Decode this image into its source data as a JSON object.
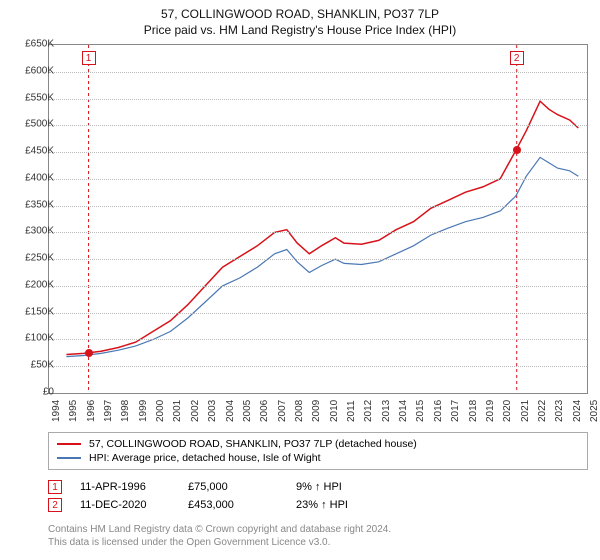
{
  "title_line1": "57, COLLINGWOOD ROAD, SHANKLIN, PO37 7LP",
  "title_line2": "Price paid vs. HM Land Registry's House Price Index (HPI)",
  "chart": {
    "type": "line",
    "background_color": "#ffffff",
    "grid_color": "#bbbbbb",
    "axis_color": "#888888",
    "label_fontsize": 10,
    "xlim": [
      1994,
      2025
    ],
    "ylim": [
      0,
      650000
    ],
    "ytick_step": 50000,
    "ytick_labels": [
      "£0",
      "£50K",
      "£100K",
      "£150K",
      "£200K",
      "£250K",
      "£300K",
      "£350K",
      "£400K",
      "£450K",
      "£500K",
      "£550K",
      "£600K",
      "£650K"
    ],
    "xtick_step": 1,
    "xtick_labels": [
      "1994",
      "1995",
      "1996",
      "1997",
      "1998",
      "1999",
      "2000",
      "2001",
      "2002",
      "2003",
      "2004",
      "2005",
      "2006",
      "2007",
      "2008",
      "2009",
      "2010",
      "2011",
      "2012",
      "2013",
      "2014",
      "2015",
      "2016",
      "2017",
      "2018",
      "2019",
      "2020",
      "2021",
      "2022",
      "2023",
      "2024",
      "2025"
    ],
    "series": [
      {
        "name": "property",
        "label": "57, COLLINGWOOD ROAD, SHANKLIN, PO37 7LP (detached house)",
        "color": "#d8121a",
        "line_width": 1.5,
        "points": [
          [
            1995.0,
            72000
          ],
          [
            1996.0,
            74000
          ],
          [
            1997.0,
            78000
          ],
          [
            1998.0,
            85000
          ],
          [
            1999.0,
            95000
          ],
          [
            2000.0,
            115000
          ],
          [
            2001.0,
            135000
          ],
          [
            2002.0,
            165000
          ],
          [
            2003.0,
            200000
          ],
          [
            2004.0,
            235000
          ],
          [
            2005.0,
            255000
          ],
          [
            2006.0,
            275000
          ],
          [
            2007.0,
            300000
          ],
          [
            2007.7,
            305000
          ],
          [
            2008.3,
            280000
          ],
          [
            2009.0,
            260000
          ],
          [
            2009.7,
            275000
          ],
          [
            2010.5,
            290000
          ],
          [
            2011.0,
            280000
          ],
          [
            2012.0,
            278000
          ],
          [
            2013.0,
            285000
          ],
          [
            2014.0,
            305000
          ],
          [
            2015.0,
            320000
          ],
          [
            2016.0,
            345000
          ],
          [
            2017.0,
            360000
          ],
          [
            2018.0,
            375000
          ],
          [
            2019.0,
            385000
          ],
          [
            2020.0,
            400000
          ],
          [
            2020.9,
            453000
          ],
          [
            2021.5,
            490000
          ],
          [
            2022.3,
            545000
          ],
          [
            2022.8,
            530000
          ],
          [
            2023.3,
            520000
          ],
          [
            2024.0,
            510000
          ],
          [
            2024.5,
            495000
          ]
        ]
      },
      {
        "name": "hpi",
        "label": "HPI: Average price, detached house, Isle of Wight",
        "color": "#4a78b5",
        "line_width": 1.2,
        "points": [
          [
            1995.0,
            68000
          ],
          [
            1996.0,
            70000
          ],
          [
            1997.0,
            74000
          ],
          [
            1998.0,
            80000
          ],
          [
            1999.0,
            88000
          ],
          [
            2000.0,
            100000
          ],
          [
            2001.0,
            115000
          ],
          [
            2002.0,
            140000
          ],
          [
            2003.0,
            170000
          ],
          [
            2004.0,
            200000
          ],
          [
            2005.0,
            215000
          ],
          [
            2006.0,
            235000
          ],
          [
            2007.0,
            260000
          ],
          [
            2007.7,
            268000
          ],
          [
            2008.3,
            245000
          ],
          [
            2009.0,
            225000
          ],
          [
            2009.7,
            238000
          ],
          [
            2010.5,
            250000
          ],
          [
            2011.0,
            242000
          ],
          [
            2012.0,
            240000
          ],
          [
            2013.0,
            245000
          ],
          [
            2014.0,
            260000
          ],
          [
            2015.0,
            275000
          ],
          [
            2016.0,
            295000
          ],
          [
            2017.0,
            308000
          ],
          [
            2018.0,
            320000
          ],
          [
            2019.0,
            328000
          ],
          [
            2020.0,
            340000
          ],
          [
            2020.9,
            368000
          ],
          [
            2021.5,
            405000
          ],
          [
            2022.3,
            440000
          ],
          [
            2022.8,
            430000
          ],
          [
            2023.3,
            420000
          ],
          [
            2024.0,
            415000
          ],
          [
            2024.5,
            405000
          ]
        ]
      }
    ],
    "sale_points": [
      {
        "n": "1",
        "x": 1996.28,
        "y": 75000,
        "color": "#d8121a"
      },
      {
        "n": "2",
        "x": 2020.95,
        "y": 453000,
        "color": "#d8121a"
      }
    ],
    "marker_line_dash": "3,3"
  },
  "legend": {
    "rows": [
      {
        "color": "#d8121a",
        "label": "57, COLLINGWOOD ROAD, SHANKLIN, PO37 7LP (detached house)"
      },
      {
        "color": "#4a78b5",
        "label": "HPI: Average price, detached house, Isle of Wight"
      }
    ]
  },
  "datapoints": [
    {
      "n": "1",
      "color": "#d8121a",
      "date": "11-APR-1996",
      "price": "£75,000",
      "pct": "9% ↑ HPI"
    },
    {
      "n": "2",
      "color": "#d8121a",
      "date": "11-DEC-2020",
      "price": "£453,000",
      "pct": "23% ↑ HPI"
    }
  ],
  "credit_line1": "Contains HM Land Registry data © Crown copyright and database right 2024.",
  "credit_line2": "This data is licensed under the Open Government Licence v3.0."
}
